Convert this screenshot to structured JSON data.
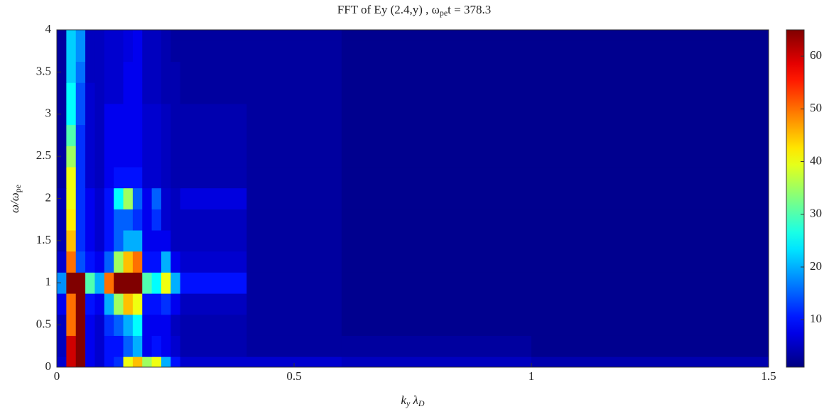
{
  "chart_data": {
    "type": "heatmap",
    "title": {
      "prefix": "FFT of Ey (2.4,y) , ω",
      "sub": "pe",
      "suffix": "t = 378.3"
    },
    "x_label": {
      "main": "k",
      "sub": "y",
      "main2": " λ",
      "sub2": "D"
    },
    "y_label": {
      "main": "ω/ω",
      "sub": "pe"
    },
    "x_edges": [
      0,
      0.02,
      0.04,
      0.06,
      0.08,
      0.1,
      0.12,
      0.14,
      0.16,
      0.18,
      0.2,
      0.22,
      0.24,
      0.26,
      0.4,
      0.6,
      1.0,
      1.5
    ],
    "y_edges": [
      0,
      0.125,
      0.375,
      0.625,
      0.875,
      1.125,
      1.375,
      1.625,
      1.875,
      2.125,
      2.375,
      2.625,
      2.875,
      3.125,
      3.375,
      3.625,
      3.875,
      4
    ],
    "z": [
      [
        6,
        60,
        65,
        8,
        6,
        10,
        12,
        40,
        45,
        35,
        40,
        20,
        10,
        6,
        6,
        5,
        4
      ],
      [
        5,
        60,
        65,
        8,
        6,
        10,
        10,
        15,
        20,
        8,
        10,
        8,
        6,
        4,
        3,
        3,
        2
      ],
      [
        5,
        50,
        65,
        8,
        6,
        12,
        15,
        20,
        25,
        8,
        8,
        8,
        5,
        4,
        3,
        2,
        2
      ],
      [
        8,
        50,
        65,
        10,
        8,
        20,
        35,
        45,
        40,
        10,
        10,
        12,
        8,
        5,
        3,
        2,
        2
      ],
      [
        18,
        65,
        65,
        30,
        20,
        50,
        65,
        65,
        65,
        30,
        25,
        40,
        20,
        10,
        3,
        2,
        2
      ],
      [
        6,
        50,
        14,
        10,
        8,
        15,
        35,
        45,
        50,
        10,
        10,
        20,
        8,
        6,
        3,
        2,
        2
      ],
      [
        4,
        45,
        12,
        8,
        6,
        10,
        15,
        20,
        20,
        8,
        8,
        8,
        5,
        5,
        3,
        2,
        2
      ],
      [
        4,
        42,
        12,
        8,
        6,
        10,
        15,
        15,
        12,
        8,
        12,
        6,
        5,
        5,
        3,
        2,
        2
      ],
      [
        4,
        40,
        12,
        8,
        6,
        10,
        25,
        35,
        15,
        8,
        15,
        6,
        5,
        7,
        3,
        2,
        2
      ],
      [
        3,
        40,
        12,
        6,
        5,
        8,
        10,
        10,
        10,
        6,
        6,
        5,
        4,
        4,
        3,
        2,
        2
      ],
      [
        3,
        35,
        12,
        6,
        5,
        8,
        8,
        8,
        8,
        6,
        6,
        5,
        4,
        4,
        3,
        2,
        2
      ],
      [
        3,
        30,
        12,
        6,
        5,
        8,
        8,
        8,
        8,
        6,
        6,
        5,
        4,
        4,
        3,
        2,
        2
      ],
      [
        3,
        25,
        14,
        6,
        5,
        8,
        8,
        8,
        8,
        6,
        6,
        5,
        4,
        4,
        3,
        2,
        2
      ],
      [
        3,
        25,
        14,
        6,
        5,
        6,
        6,
        8,
        8,
        5,
        5,
        4,
        4,
        3,
        3,
        2,
        2
      ],
      [
        3,
        22,
        16,
        5,
        5,
        6,
        6,
        8,
        8,
        5,
        5,
        4,
        4,
        3,
        3,
        2,
        2
      ],
      [
        3,
        22,
        18,
        5,
        5,
        6,
        6,
        7,
        8,
        5,
        5,
        4,
        3,
        3,
        3,
        2,
        2
      ],
      [
        3,
        22,
        18,
        5,
        5,
        6,
        6,
        7,
        8,
        5,
        5,
        4,
        3,
        3,
        3,
        2,
        2
      ]
    ],
    "colormap": "jet",
    "xlim": [
      0,
      1.5
    ],
    "xticks": [
      0,
      0.5,
      1,
      1.5
    ],
    "ylim": [
      0,
      4
    ],
    "yticks": [
      0,
      0.5,
      1,
      1.5,
      2,
      2.5,
      3,
      3.5,
      4
    ],
    "clim": [
      1,
      65
    ],
    "cticks": [
      10,
      20,
      30,
      40,
      50,
      60
    ]
  }
}
